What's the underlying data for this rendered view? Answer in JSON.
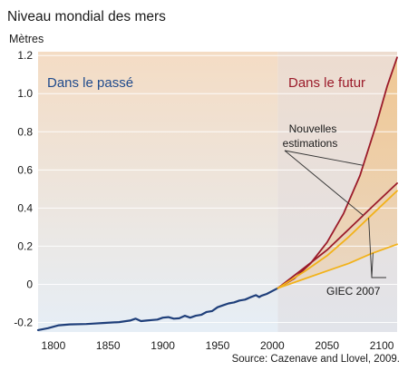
{
  "chart_data": {
    "type": "line",
    "title": "Niveau mondial des mers",
    "ylabel": "Mètres",
    "xlabel": "",
    "source": "Source: Cazenave and Llovel, 2009.",
    "region_labels": {
      "past": "Dans le passé",
      "future": "Dans le futur"
    },
    "annotations": {
      "new_estimates": [
        "Nouvelles",
        "estimations"
      ],
      "ipcc": "GIEC 2007"
    },
    "xlim": [
      1786,
      2114
    ],
    "ylim": [
      -0.25,
      1.22
    ],
    "x_ticks": [
      1800,
      1850,
      1900,
      1950,
      2000,
      2050,
      2100
    ],
    "y_ticks": [
      {
        "value": -0.2,
        "label": "-0.2"
      },
      {
        "value": 0,
        "label": "0"
      },
      {
        "value": 0.2,
        "label": "0.2"
      },
      {
        "value": 0.4,
        "label": "0.4"
      },
      {
        "value": 0.6,
        "label": "0.6"
      },
      {
        "value": 0.8,
        "label": "0.8"
      },
      {
        "value": 1.0,
        "label": "1.0"
      },
      {
        "value": 1.2,
        "label": "1.2"
      }
    ],
    "past_span": [
      1786,
      2005
    ],
    "future_span": [
      2005,
      2114
    ],
    "series": [
      {
        "role": "observed",
        "color": "#1f3f7a",
        "x": [
          1786,
          1795,
          1805,
          1815,
          1830,
          1845,
          1860,
          1870,
          1875,
          1880,
          1885,
          1890,
          1895,
          1900,
          1905,
          1910,
          1915,
          1920,
          1925,
          1930,
          1935,
          1940,
          1945,
          1950,
          1955,
          1960,
          1965,
          1970,
          1975,
          1978,
          1980,
          1985,
          1988,
          1990,
          1995,
          2000,
          2005
        ],
        "y": [
          -0.24,
          -0.23,
          -0.215,
          -0.21,
          -0.208,
          -0.203,
          -0.198,
          -0.19,
          -0.18,
          -0.193,
          -0.19,
          -0.187,
          -0.185,
          -0.175,
          -0.172,
          -0.18,
          -0.178,
          -0.165,
          -0.175,
          -0.165,
          -0.16,
          -0.145,
          -0.14,
          -0.12,
          -0.11,
          -0.1,
          -0.095,
          -0.085,
          -0.08,
          -0.073,
          -0.068,
          -0.057,
          -0.067,
          -0.06,
          -0.05,
          -0.035,
          -0.02
        ]
      },
      {
        "role": "new-estimate-high",
        "color": "#9b1b2a",
        "x": [
          2005,
          2020,
          2035,
          2050,
          2065,
          2080,
          2095,
          2105,
          2114
        ],
        "y": [
          -0.02,
          0.03,
          0.11,
          0.22,
          0.37,
          0.57,
          0.84,
          1.04,
          1.19
        ]
      },
      {
        "role": "new-estimate-low",
        "color": "#9b1b2a",
        "x": [
          2005,
          2030,
          2050,
          2070,
          2090,
          2114
        ],
        "y": [
          -0.02,
          0.09,
          0.18,
          0.29,
          0.4,
          0.53
        ]
      },
      {
        "role": "ipcc-high",
        "color": "#f2b21a",
        "x": [
          2005,
          2030,
          2050,
          2070,
          2090,
          2114
        ],
        "y": [
          -0.02,
          0.07,
          0.15,
          0.25,
          0.36,
          0.49
        ]
      },
      {
        "role": "ipcc-low",
        "color": "#f2b21a",
        "x": [
          2005,
          2030,
          2050,
          2070,
          2090,
          2114
        ],
        "y": [
          -0.02,
          0.03,
          0.07,
          0.11,
          0.16,
          0.21
        ]
      }
    ],
    "colors": {
      "title": "#1a1a1a",
      "past_label": "#1f4a8c",
      "future_label": "#9b1b2a",
      "tick_text": "#1a1a1a",
      "annotation": "#1a1a1a",
      "past_bg_top": "#f4dcc4",
      "past_bg_bottom": "#e6eef6",
      "future_bg_top": "#eddccf",
      "future_bg_bottom": "#e2e4ea",
      "range_fill": "#f0c48a",
      "grid": "#ffffff"
    }
  }
}
